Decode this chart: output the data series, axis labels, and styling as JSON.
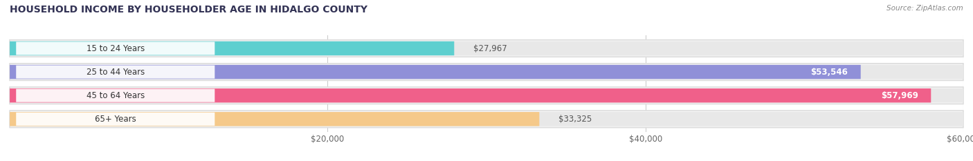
{
  "title": "HOUSEHOLD INCOME BY HOUSEHOLDER AGE IN HIDALGO COUNTY",
  "source": "Source: ZipAtlas.com",
  "categories": [
    "15 to 24 Years",
    "25 to 44 Years",
    "45 to 64 Years",
    "65+ Years"
  ],
  "values": [
    27967,
    53546,
    57969,
    33325
  ],
  "bar_colors": [
    "#5ecfcf",
    "#9090d8",
    "#f0608a",
    "#f5c98a"
  ],
  "bar_bg_color": "#eeeeee",
  "value_labels": [
    "$27,967",
    "$53,546",
    "$57,969",
    "$33,325"
  ],
  "value_label_colors_inside": [
    "white",
    "white",
    "white",
    "#666666"
  ],
  "xlim": [
    0,
    60000
  ],
  "xticks": [
    20000,
    40000,
    60000
  ],
  "xtick_labels": [
    "$20,000",
    "$40,000",
    "$60,000"
  ],
  "figsize": [
    14.06,
    2.33
  ],
  "dpi": 100
}
